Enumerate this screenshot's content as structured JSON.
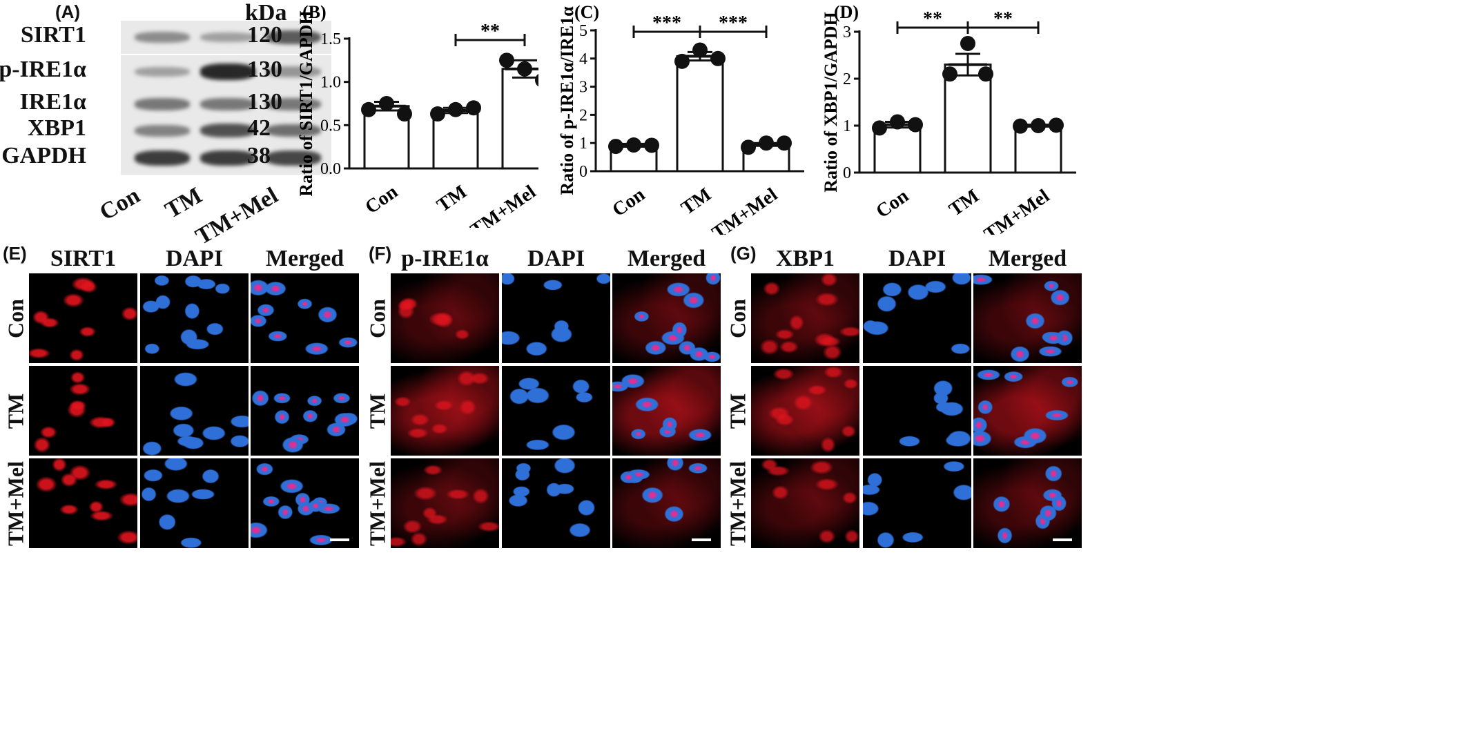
{
  "western_blot": {
    "label": "(A)",
    "kda_header": "kDa",
    "rows": [
      {
        "protein": "SIRT1",
        "kda": "120",
        "intensities": [
          0.45,
          0.35,
          0.7
        ]
      },
      {
        "protein": "p-IRE1α",
        "kda": "130",
        "intensities": [
          0.35,
          0.95,
          0.4
        ]
      },
      {
        "protein": "IRE1α",
        "kda": "130",
        "intensities": [
          0.55,
          0.55,
          0.55
        ]
      },
      {
        "protein": "XBP1",
        "kda": "42",
        "intensities": [
          0.5,
          0.75,
          0.6
        ]
      },
      {
        "protein": "GAPDH",
        "kda": "38",
        "intensities": [
          0.85,
          0.85,
          0.8
        ]
      }
    ],
    "lanes": [
      "Con",
      "TM",
      "TM+Mel"
    ]
  },
  "chart_data": [
    {
      "type": "bar",
      "panel": "(B)",
      "title": "",
      "categories": [
        "Con",
        "TM",
        "TM+Mel"
      ],
      "values": [
        0.72,
        0.67,
        1.15
      ],
      "errors": [
        0.05,
        0.03,
        0.1
      ],
      "points": [
        [
          0.68,
          0.75,
          0.63
        ],
        [
          0.63,
          0.68,
          0.7
        ],
        [
          1.25,
          1.15,
          1.02
        ]
      ],
      "ylabel": "Ratio of SIRT1/GAPDH",
      "ylim": [
        0,
        1.5
      ],
      "yticks": [
        "0.0",
        "0.5",
        "1.0",
        "1.5"
      ],
      "significance": [
        {
          "from": 1,
          "to": 2,
          "label": "**"
        }
      ]
    },
    {
      "type": "bar",
      "panel": "(C)",
      "title": "",
      "categories": [
        "Con",
        "TM",
        "TM+Mel"
      ],
      "values": [
        0.92,
        4.08,
        0.95
      ],
      "errors": [
        0.05,
        0.15,
        0.05
      ],
      "points": [
        [
          0.88,
          0.93,
          0.92
        ],
        [
          3.9,
          4.3,
          4.0
        ],
        [
          0.85,
          1.0,
          1.0
        ]
      ],
      "ylabel": "Ratio of p-IRE1α/IRE1α",
      "ylim": [
        0,
        5
      ],
      "yticks": [
        "0",
        "1",
        "2",
        "3",
        "4",
        "5"
      ],
      "significance": [
        {
          "from": 0,
          "to": 1,
          "label": "***"
        },
        {
          "from": 1,
          "to": 2,
          "label": "***"
        }
      ]
    },
    {
      "type": "bar",
      "panel": "(D)",
      "title": "",
      "categories": [
        "Con",
        "TM",
        "TM+Mel"
      ],
      "values": [
        1.02,
        2.3,
        1.0
      ],
      "errors": [
        0.06,
        0.23,
        0.02
      ],
      "points": [
        [
          0.95,
          1.08,
          1.02
        ],
        [
          2.1,
          2.75,
          2.1
        ],
        [
          0.99,
          1.0,
          1.01
        ]
      ],
      "ylabel": "Ratio of XBP1/GAPDH",
      "ylim": [
        0,
        3
      ],
      "yticks": [
        "0",
        "1",
        "2",
        "3"
      ],
      "significance": [
        {
          "from": 0,
          "to": 1,
          "label": "**"
        },
        {
          "from": 1,
          "to": 2,
          "label": "**"
        }
      ]
    }
  ],
  "if_panels": [
    {
      "label": "(E)",
      "columns": [
        "SIRT1",
        "DAPI",
        "Merged"
      ]
    },
    {
      "label": "(F)",
      "columns": [
        "p-IRE1α",
        "DAPI",
        "Merged"
      ]
    },
    {
      "label": "(G)",
      "columns": [
        "XBP1",
        "DAPI",
        "Merged"
      ]
    }
  ],
  "if_rows": [
    "Con",
    "TM",
    "TM+Mel"
  ],
  "colors": {
    "red_channel": "#e0141e",
    "blue_channel": "#2f6fd8",
    "bar_fill": "#ffffff",
    "ink": "#111111"
  }
}
